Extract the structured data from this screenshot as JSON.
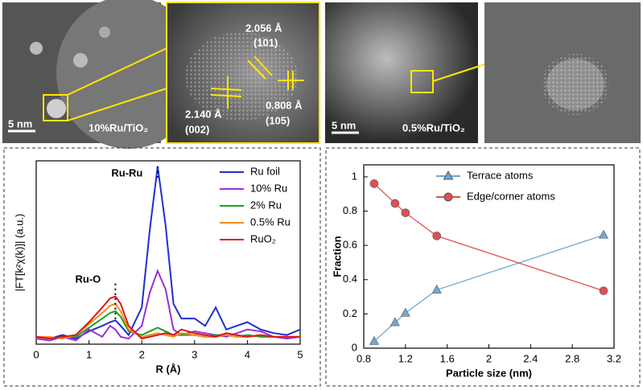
{
  "images": [
    {
      "scale_bar": "5 nm",
      "label": "10%Ru/TiO₂",
      "annotations": [
        [
          "2.056 Å",
          "(101)"
        ],
        [
          "2.140 Å",
          "(002)"
        ],
        [
          "0.808 Å",
          "(105)"
        ]
      ]
    },
    {
      "scale_bar": "5 nm",
      "label": "0.5%Ru/TiO₂"
    }
  ],
  "chart_data": [
    {
      "type": "line",
      "xlabel": "R (Å)",
      "ylabel": "|FT[k²χ(k)]| (a.u.)",
      "annotations": [
        "Ru-Ru",
        "Ru-O"
      ],
      "legend": "upper right",
      "xlim": [
        0,
        5
      ],
      "xticks": [
        0,
        1,
        2,
        3,
        4,
        5
      ],
      "ylim": [
        0,
        1
      ],
      "x": [
        0,
        0.25,
        0.5,
        0.75,
        1.0,
        1.25,
        1.4,
        1.5,
        1.6,
        1.75,
        2.0,
        2.15,
        2.3,
        2.45,
        2.6,
        2.75,
        3.0,
        3.2,
        3.4,
        3.6,
        3.8,
        4.0,
        4.25,
        4.5,
        4.75,
        5.0
      ],
      "series": [
        {
          "name": "Ru foil",
          "color": "#1f2fcf",
          "values": [
            0.04,
            0.03,
            0.05,
            0.03,
            0.07,
            0.1,
            0.12,
            0.13,
            0.1,
            0.05,
            0.2,
            0.62,
            0.97,
            0.65,
            0.22,
            0.14,
            0.14,
            0.1,
            0.2,
            0.08,
            0.1,
            0.12,
            0.08,
            0.06,
            0.05,
            0.08
          ]
        },
        {
          "name": "10% Ru",
          "color": "#9b30d9",
          "values": [
            0.03,
            0.02,
            0.04,
            0.02,
            0.08,
            0.04,
            0.1,
            0.08,
            0.04,
            0.03,
            0.1,
            0.28,
            0.4,
            0.3,
            0.08,
            0.05,
            0.07,
            0.06,
            0.05,
            0.04,
            0.06,
            0.08,
            0.07,
            0.04,
            0.03,
            0.04
          ]
        },
        {
          "name": "2% Ru",
          "color": "#1e9e1e",
          "values": [
            0.04,
            0.03,
            0.04,
            0.04,
            0.09,
            0.14,
            0.17,
            0.18,
            0.15,
            0.07,
            0.05,
            0.07,
            0.09,
            0.07,
            0.05,
            0.05,
            0.05,
            0.04,
            0.05,
            0.05,
            0.04,
            0.05,
            0.04,
            0.04,
            0.04,
            0.04
          ]
        },
        {
          "name": "0.5% Ru",
          "color": "#f28c1c",
          "values": [
            0.04,
            0.04,
            0.03,
            0.05,
            0.11,
            0.17,
            0.21,
            0.22,
            0.18,
            0.08,
            0.04,
            0.05,
            0.06,
            0.05,
            0.04,
            0.06,
            0.05,
            0.04,
            0.04,
            0.05,
            0.04,
            0.04,
            0.05,
            0.04,
            0.04,
            0.04
          ]
        },
        {
          "name": "RuO₂",
          "color": "#e0141e",
          "values": [
            0.04,
            0.03,
            0.04,
            0.05,
            0.12,
            0.2,
            0.25,
            0.26,
            0.22,
            0.1,
            0.03,
            0.04,
            0.05,
            0.06,
            0.05,
            0.08,
            0.06,
            0.05,
            0.04,
            0.06,
            0.05,
            0.04,
            0.05,
            0.04,
            0.04,
            0.04
          ]
        }
      ]
    },
    {
      "type": "line",
      "xlabel": "Particle size (nm)",
      "ylabel": "Fraction",
      "legend": "upper right",
      "xlim": [
        0.8,
        3.2
      ],
      "xticks": [
        0.8,
        1.2,
        1.6,
        2,
        2.4,
        2.8,
        3.2
      ],
      "ylim": [
        0,
        1.07
      ],
      "yticks": [
        0,
        0.2,
        0.4,
        0.6,
        0.8,
        1
      ],
      "series": [
        {
          "name": "Terrace atoms",
          "color": "#6fa8d6",
          "marker": "triangle",
          "x": [
            0.9,
            1.1,
            1.2,
            1.5,
            3.1
          ],
          "values": [
            0.04,
            0.15,
            0.205,
            0.34,
            0.66
          ]
        },
        {
          "name": "Edge/corner atoms",
          "color": "#e05050",
          "marker": "circle",
          "x": [
            0.9,
            1.1,
            1.2,
            1.5,
            3.1
          ],
          "values": [
            0.96,
            0.845,
            0.79,
            0.655,
            0.335
          ]
        }
      ]
    }
  ]
}
